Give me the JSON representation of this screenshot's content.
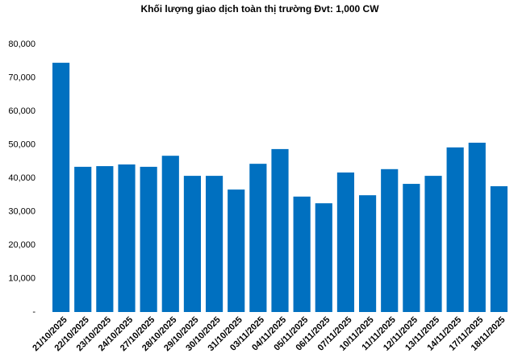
{
  "chart_data": {
    "type": "bar",
    "title": "Khối lượng giao dịch toàn thị trường Đvt: 1,000 CW",
    "categories": [
      "21/10/2025",
      "22/10/2025",
      "23/10/2025",
      "24/10/2025",
      "27/10/2025",
      "28/10/2025",
      "29/10/2025",
      "30/10/2025",
      "31/10/2025",
      "03/11/2025",
      "04/11/2025",
      "05/11/2025",
      "06/11/2025",
      "07/11/2025",
      "10/11/2025",
      "11/11/2025",
      "12/11/2025",
      "13/11/2025",
      "14/11/2025",
      "17/11/2025",
      "18/11/2025"
    ],
    "values": [
      74500,
      43400,
      43600,
      44100,
      43400,
      46700,
      40700,
      40700,
      36600,
      44300,
      48700,
      34500,
      32500,
      41700,
      34900,
      42700,
      38300,
      40700,
      49200,
      50600,
      37600
    ],
    "color": "#0070c0",
    "ylim": [
      0,
      80000
    ],
    "yticks": [
      {
        "value": 0,
        "label": "-"
      },
      {
        "value": 10000,
        "label": "10,000"
      },
      {
        "value": 20000,
        "label": "20,000"
      },
      {
        "value": 30000,
        "label": "30,000"
      },
      {
        "value": 40000,
        "label": "40,000"
      },
      {
        "value": 50000,
        "label": "50,000"
      },
      {
        "value": 60000,
        "label": "60,000"
      },
      {
        "value": 70000,
        "label": "70,000"
      },
      {
        "value": 80000,
        "label": "80,000"
      }
    ],
    "grid": false
  }
}
